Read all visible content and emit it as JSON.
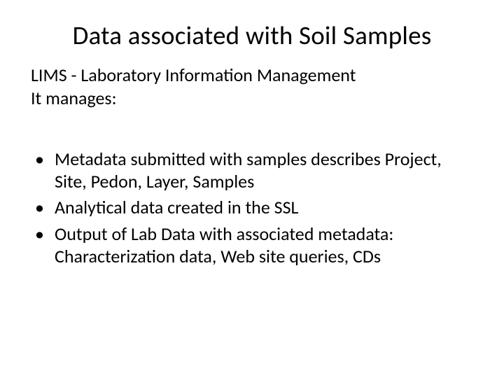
{
  "title": "Data associated with Soil Samples",
  "intro_line1": "LIMS  - Laboratory Information Management",
  "intro_line2": "It manages:",
  "bullets": [
    "Metadata submitted with samples describes Project, Site, Pedon, Layer, Samples",
    "Analytical data created in the SSL",
    "Output of Lab Data with associated metadata: Characterization data,  Web site queries, CDs"
  ],
  "colors": {
    "background": "#ffffff",
    "text": "#000000"
  },
  "typography": {
    "title_fontsize": 37,
    "body_fontsize": 26,
    "font_family": "Calibri"
  }
}
